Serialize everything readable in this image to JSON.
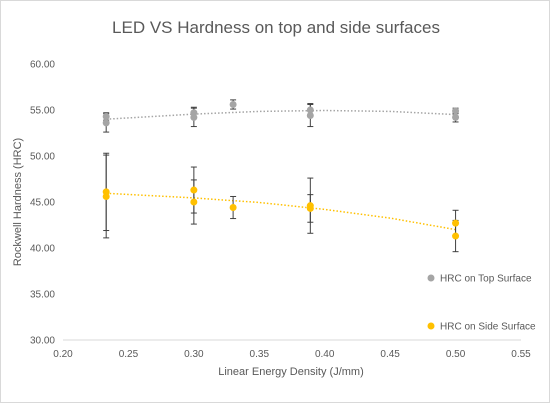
{
  "chart_data": {
    "type": "scatter",
    "title": "LED VS Hardness on top and side surfaces",
    "xlabel": "Linear Energy Density (J/mm)",
    "ylabel": "Rockwell Hardness (HRC)",
    "xlim": [
      0.2,
      0.55
    ],
    "ylim": [
      30,
      60
    ],
    "x_ticks": [
      "0.20",
      "0.25",
      "0.30",
      "0.35",
      "0.40",
      "0.45",
      "0.50",
      "0.55"
    ],
    "y_ticks": [
      "30.00",
      "35.00",
      "40.00",
      "45.00",
      "50.00",
      "55.00",
      "60.00"
    ],
    "grid": false,
    "legend_position": "right",
    "series": [
      {
        "name": "HRC on Top Surface",
        "color": "#a5a5a5",
        "trendline": "polynomial-dotted",
        "points": [
          {
            "x": 0.233,
            "y": 54.3,
            "err": 0.4
          },
          {
            "x": 0.233,
            "y": 53.6,
            "err": 1.0
          },
          {
            "x": 0.3,
            "y": 54.7,
            "err": 0.6
          },
          {
            "x": 0.3,
            "y": 54.2,
            "err": 1.0
          },
          {
            "x": 0.33,
            "y": 55.6,
            "err": 0.5
          },
          {
            "x": 0.389,
            "y": 55.0,
            "err": 0.7
          },
          {
            "x": 0.389,
            "y": 54.4,
            "err": 1.2
          },
          {
            "x": 0.5,
            "y": 54.9,
            "err": 0.3
          },
          {
            "x": 0.5,
            "y": 54.2,
            "err": 0.5
          }
        ],
        "trend": [
          [
            0.233,
            54.0
          ],
          [
            0.3,
            54.55
          ],
          [
            0.35,
            54.85
          ],
          [
            0.4,
            54.95
          ],
          [
            0.45,
            54.85
          ],
          [
            0.5,
            54.5
          ]
        ]
      },
      {
        "name": "HRC on Side Surface",
        "color": "#ffc000",
        "trendline": "polynomial-dotted",
        "points": [
          {
            "x": 0.233,
            "y": 46.1,
            "err": 4.2
          },
          {
            "x": 0.233,
            "y": 45.6,
            "err": 4.5
          },
          {
            "x": 0.3,
            "y": 46.3,
            "err": 2.5
          },
          {
            "x": 0.3,
            "y": 45.0,
            "err": 2.4
          },
          {
            "x": 0.33,
            "y": 44.4,
            "err": 1.2
          },
          {
            "x": 0.389,
            "y": 44.6,
            "err": 3.0
          },
          {
            "x": 0.389,
            "y": 44.3,
            "err": 1.5
          },
          {
            "x": 0.5,
            "y": 42.7,
            "err": 1.4
          },
          {
            "x": 0.5,
            "y": 41.3,
            "err": 1.7
          }
        ],
        "trend": [
          [
            0.233,
            45.95
          ],
          [
            0.3,
            45.45
          ],
          [
            0.35,
            44.95
          ],
          [
            0.4,
            44.2
          ],
          [
            0.45,
            43.25
          ],
          [
            0.5,
            42.0
          ]
        ]
      }
    ]
  }
}
